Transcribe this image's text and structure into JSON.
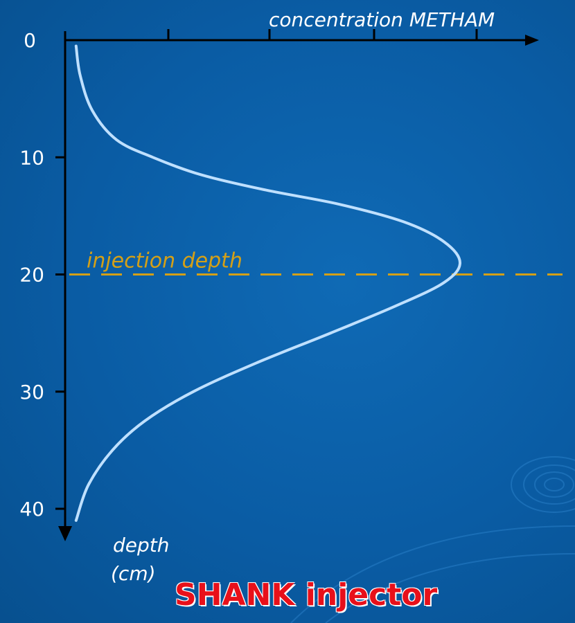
{
  "chart_data": {
    "type": "line",
    "x_axis": {
      "label": "concentration METHAM",
      "position": "top"
    },
    "y_axis": {
      "label_line1": "depth",
      "label_line2": "(cm)",
      "ticks": [
        "0",
        "10",
        "20",
        "30",
        "40"
      ],
      "tick_values": [
        0,
        10,
        20,
        30,
        40
      ],
      "inverted": true,
      "ylim": [
        0,
        42
      ]
    },
    "xlim": [
      0,
      5
    ],
    "series": [
      {
        "points": [
          {
            "x": 0.05,
            "y": 0.5
          },
          {
            "x": 0.1,
            "y": 3
          },
          {
            "x": 0.25,
            "y": 6
          },
          {
            "x": 0.55,
            "y": 8.5
          },
          {
            "x": 1.0,
            "y": 10
          },
          {
            "x": 1.6,
            "y": 11.5
          },
          {
            "x": 2.4,
            "y": 12.8
          },
          {
            "x": 3.3,
            "y": 14
          },
          {
            "x": 4.1,
            "y": 15.5
          },
          {
            "x": 4.6,
            "y": 17.2
          },
          {
            "x": 4.8,
            "y": 19
          },
          {
            "x": 4.6,
            "y": 20.7
          },
          {
            "x": 4.0,
            "y": 22.7
          },
          {
            "x": 3.2,
            "y": 25
          },
          {
            "x": 2.3,
            "y": 27.5
          },
          {
            "x": 1.5,
            "y": 30
          },
          {
            "x": 0.9,
            "y": 32.5
          },
          {
            "x": 0.5,
            "y": 35
          },
          {
            "x": 0.2,
            "y": 38
          },
          {
            "x": 0.05,
            "y": 41
          }
        ],
        "color": "#bfe0ff"
      }
    ],
    "annotations": [
      {
        "text": "injection depth",
        "y": 20,
        "color": "#d4a017",
        "style": "dashed"
      }
    ],
    "caption": "SHANK injector",
    "caption_color": "#e8101a",
    "grid": false
  }
}
